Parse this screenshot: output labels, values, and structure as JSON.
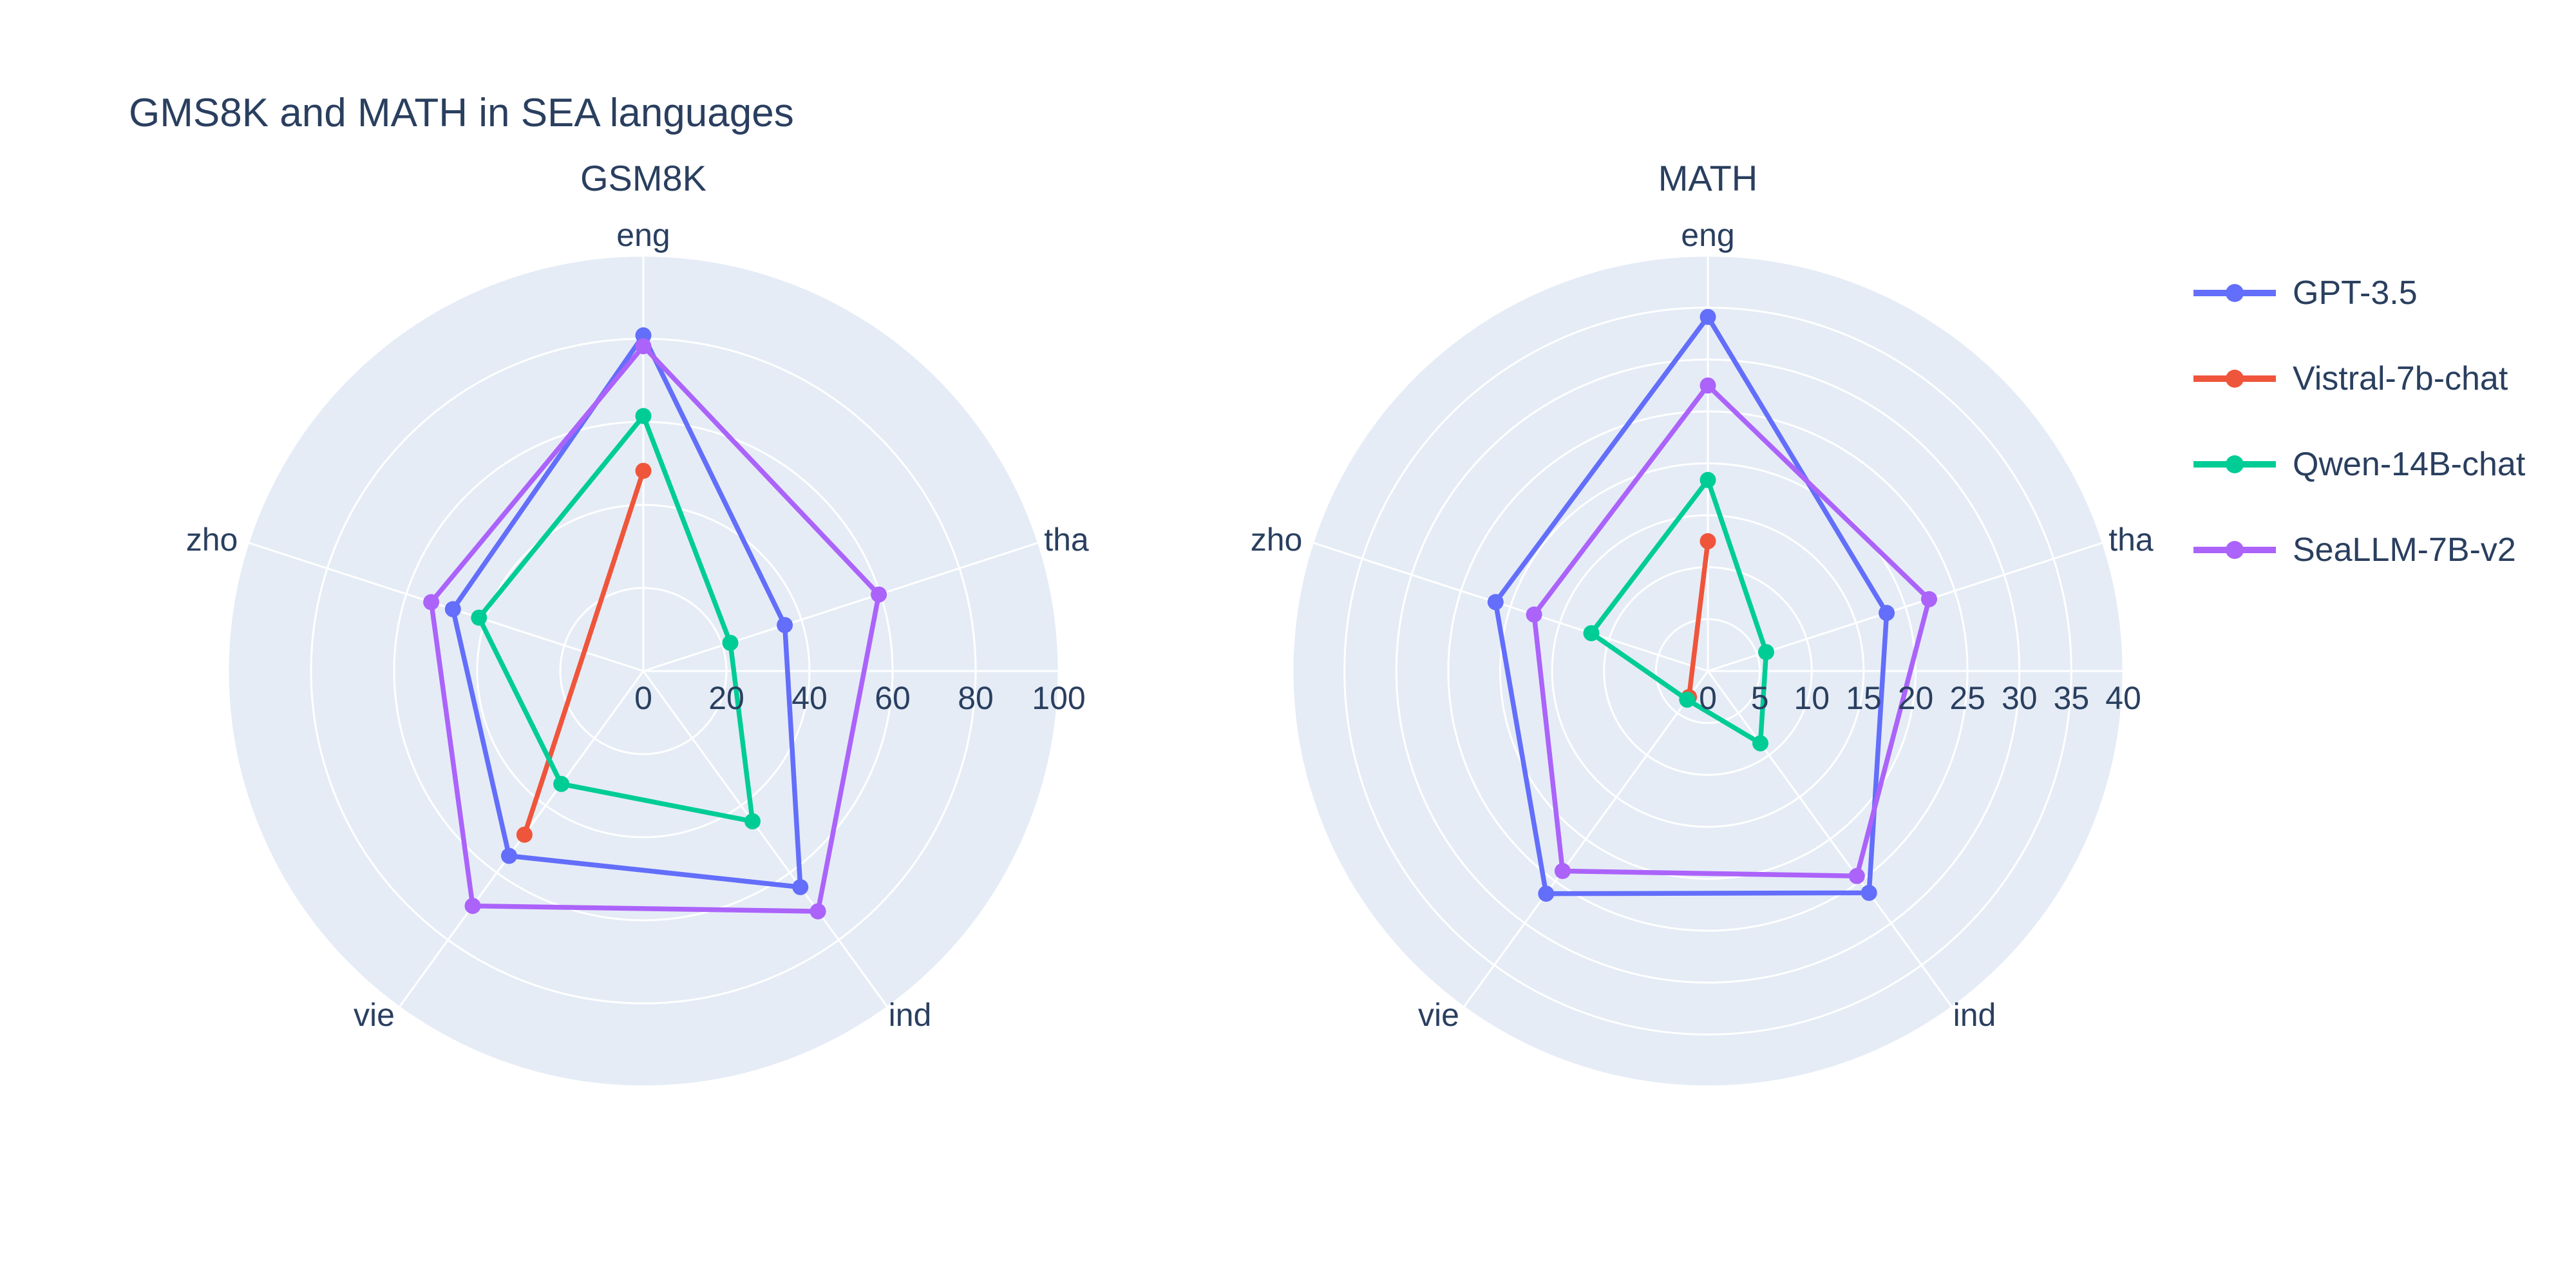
{
  "page": {
    "title": "GMS8K and MATH in SEA languages"
  },
  "colors": {
    "background": "#ffffff",
    "polar_background": "#e5ecf6",
    "gridline": "#ffffff",
    "text": "#2a3f5f",
    "series": {
      "GPT-3.5": "#636efa",
      "Vistral-7b-chat": "#ef553b",
      "Qwen-14B-chat": "#00cc96",
      "SeaLLM-7B-v2": "#ab63fa"
    }
  },
  "legend": {
    "position": "right",
    "items": [
      {
        "label": "GPT-3.5",
        "color": "#636efa",
        "swatch": "line-with-marker"
      },
      {
        "label": "Vistral-7b-chat",
        "color": "#ef553b",
        "swatch": "line-with-marker"
      },
      {
        "label": "Qwen-14B-chat",
        "color": "#00cc96",
        "swatch": "line-with-marker"
      },
      {
        "label": "SeaLLM-7B-v2",
        "color": "#ab63fa",
        "swatch": "line-with-marker"
      }
    ]
  },
  "chart_data": [
    {
      "type": "radar",
      "title": "GSM8K",
      "categories": [
        "eng",
        "tha",
        "ind",
        "vie",
        "zho"
      ],
      "angular_direction": "clockwise-from-top",
      "radial_range": [
        0,
        100
      ],
      "radial_ticks": [
        0,
        20,
        40,
        60,
        80,
        100
      ],
      "grid": true,
      "series": [
        {
          "name": "GPT-3.5",
          "color": "#636efa",
          "values": [
            80.8,
            35.8,
            64.3,
            55.0,
            48.2
          ]
        },
        {
          "name": "Vistral-7b-chat",
          "color": "#ef553b",
          "values": [
            48.2,
            null,
            null,
            48.7,
            null
          ]
        },
        {
          "name": "Qwen-14B-chat",
          "color": "#00cc96",
          "values": [
            61.4,
            22.0,
            44.7,
            33.6,
            41.6
          ]
        },
        {
          "name": "SeaLLM-7B-v2",
          "color": "#ab63fa",
          "values": [
            78.2,
            59.6,
            71.5,
            69.9,
            53.7
          ]
        }
      ]
    },
    {
      "type": "radar",
      "title": "MATH",
      "categories": [
        "eng",
        "tha",
        "ind",
        "vie",
        "zho"
      ],
      "angular_direction": "clockwise-from-top",
      "radial_range": [
        0,
        40
      ],
      "radial_ticks": [
        0,
        5,
        10,
        15,
        20,
        25,
        30,
        35,
        40
      ],
      "grid": true,
      "series": [
        {
          "name": "GPT-3.5",
          "color": "#636efa",
          "values": [
            34.1,
            18.1,
            26.4,
            26.5,
            21.5
          ]
        },
        {
          "name": "Vistral-7b-chat",
          "color": "#ef553b",
          "values": [
            12.5,
            null,
            null,
            3.1,
            null
          ]
        },
        {
          "name": "Qwen-14B-chat",
          "color": "#00cc96",
          "values": [
            18.4,
            5.9,
            8.6,
            3.4,
            11.8
          ]
        },
        {
          "name": "SeaLLM-7B-v2",
          "color": "#ab63fa",
          "values": [
            27.5,
            22.4,
            24.4,
            23.8,
            17.6
          ]
        }
      ]
    }
  ]
}
